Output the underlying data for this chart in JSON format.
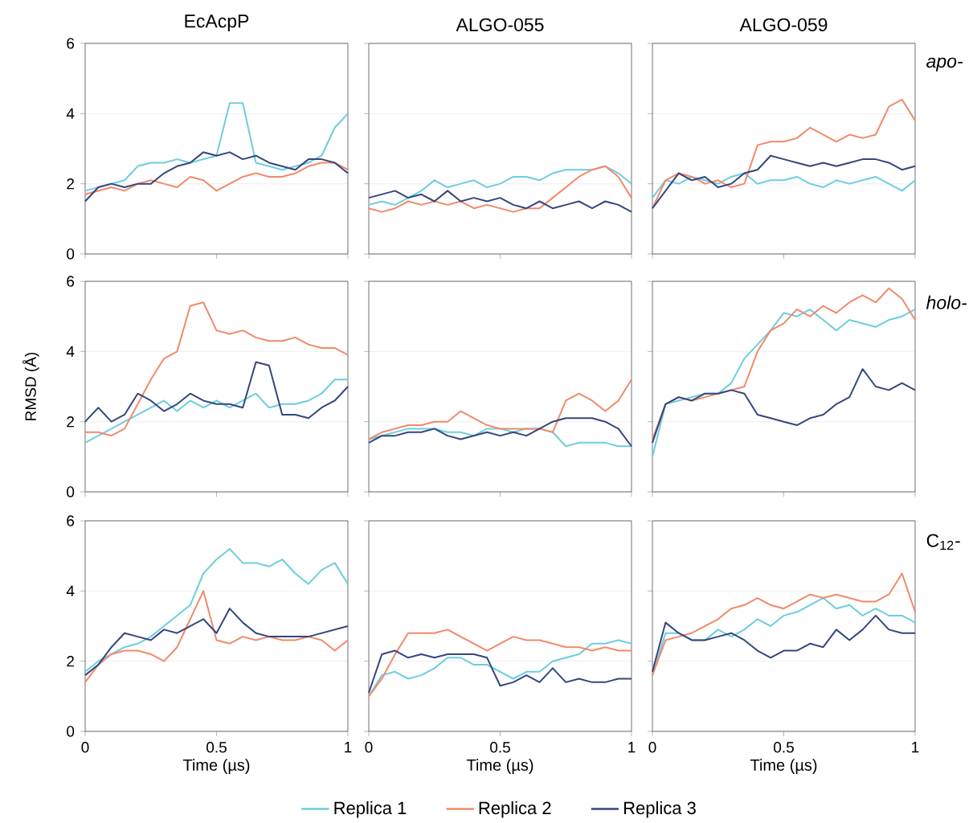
{
  "chart_data": [
    {
      "type": "line",
      "title": "EcAcpP",
      "xlim": [
        0,
        1
      ],
      "ylim": [
        0,
        6
      ],
      "xticks": [
        0,
        0.5,
        1
      ],
      "yticks": [
        0,
        2,
        4,
        6
      ],
      "tick_labels": "y",
      "grid": "y",
      "marker": "none",
      "line_style": "solid",
      "x": [
        0,
        0.05,
        0.1,
        0.15,
        0.2,
        0.25,
        0.3,
        0.35,
        0.4,
        0.45,
        0.5,
        0.55,
        0.6,
        0.65,
        0.7,
        0.75,
        0.8,
        0.85,
        0.9,
        0.95,
        1
      ],
      "series": [
        {
          "color": "#6ecde0",
          "values": [
            1.8,
            1.9,
            2.0,
            2.1,
            2.5,
            2.6,
            2.6,
            2.7,
            2.6,
            2.7,
            2.8,
            4.3,
            4.3,
            2.6,
            2.5,
            2.4,
            2.5,
            2.6,
            2.8,
            3.6,
            4.0
          ]
        },
        {
          "color": "#f08a6a",
          "values": [
            1.7,
            1.8,
            1.9,
            1.8,
            2.0,
            2.1,
            2.0,
            1.9,
            2.2,
            2.1,
            1.8,
            2.0,
            2.2,
            2.3,
            2.2,
            2.2,
            2.3,
            2.5,
            2.6,
            2.6,
            2.4
          ]
        },
        {
          "color": "#34467e",
          "values": [
            1.5,
            1.9,
            2.0,
            1.9,
            2.0,
            2.0,
            2.3,
            2.5,
            2.6,
            2.9,
            2.8,
            2.9,
            2.7,
            2.8,
            2.6,
            2.5,
            2.4,
            2.7,
            2.7,
            2.6,
            2.3
          ]
        }
      ]
    },
    {
      "type": "line",
      "title": "ALGO-055",
      "xlim": [
        0,
        1
      ],
      "ylim": [
        0,
        6
      ],
      "xticks": [
        0,
        0.5,
        1
      ],
      "yticks": [
        0,
        2,
        4,
        6
      ],
      "tick_labels": false,
      "grid": "y",
      "marker": "none",
      "line_style": "solid",
      "x": [
        0,
        0.05,
        0.1,
        0.15,
        0.2,
        0.25,
        0.3,
        0.35,
        0.4,
        0.45,
        0.5,
        0.55,
        0.6,
        0.65,
        0.7,
        0.75,
        0.8,
        0.85,
        0.9,
        0.95,
        1
      ],
      "series": [
        {
          "color": "#6ecde0",
          "values": [
            1.4,
            1.5,
            1.4,
            1.6,
            1.8,
            2.1,
            1.9,
            2.0,
            2.1,
            1.9,
            2.0,
            2.2,
            2.2,
            2.1,
            2.3,
            2.4,
            2.4,
            2.4,
            2.5,
            2.3,
            2.0
          ]
        },
        {
          "color": "#f08a6a",
          "values": [
            1.3,
            1.2,
            1.3,
            1.5,
            1.4,
            1.5,
            1.4,
            1.5,
            1.3,
            1.4,
            1.3,
            1.2,
            1.3,
            1.3,
            1.6,
            1.9,
            2.2,
            2.4,
            2.5,
            2.2,
            1.6
          ]
        },
        {
          "color": "#34467e",
          "values": [
            1.6,
            1.7,
            1.8,
            1.6,
            1.7,
            1.5,
            1.8,
            1.5,
            1.6,
            1.5,
            1.6,
            1.4,
            1.3,
            1.5,
            1.3,
            1.4,
            1.5,
            1.3,
            1.5,
            1.4,
            1.2
          ]
        }
      ]
    },
    {
      "type": "line",
      "title": "ALGO-059",
      "annotations": [
        "*apo-*"
      ],
      "xlim": [
        0,
        1
      ],
      "ylim": [
        0,
        6
      ],
      "xticks": [
        0,
        0.5,
        1
      ],
      "yticks": [
        0,
        2,
        4,
        6
      ],
      "tick_labels": false,
      "grid": "y",
      "marker": "none",
      "line_style": "solid",
      "x": [
        0,
        0.05,
        0.1,
        0.15,
        0.2,
        0.25,
        0.3,
        0.35,
        0.4,
        0.45,
        0.5,
        0.55,
        0.6,
        0.65,
        0.7,
        0.75,
        0.8,
        0.85,
        0.9,
        0.95,
        1
      ],
      "series": [
        {
          "color": "#6ecde0",
          "values": [
            1.6,
            2.1,
            2.0,
            2.2,
            2.1,
            2.0,
            2.2,
            2.3,
            2.0,
            2.1,
            2.1,
            2.2,
            2.0,
            1.9,
            2.1,
            2.0,
            2.1,
            2.2,
            2.0,
            1.8,
            2.1
          ]
        },
        {
          "color": "#f08a6a",
          "values": [
            1.3,
            2.1,
            2.3,
            2.2,
            2.0,
            2.1,
            1.9,
            2.0,
            3.1,
            3.2,
            3.2,
            3.3,
            3.6,
            3.4,
            3.2,
            3.4,
            3.3,
            3.4,
            4.2,
            4.4,
            3.8
          ]
        },
        {
          "color": "#34467e",
          "values": [
            1.3,
            1.8,
            2.3,
            2.1,
            2.2,
            1.9,
            2.0,
            2.3,
            2.4,
            2.8,
            2.7,
            2.6,
            2.5,
            2.6,
            2.5,
            2.6,
            2.7,
            2.7,
            2.6,
            2.4,
            2.5
          ]
        }
      ]
    },
    {
      "type": "line",
      "ylabel": "RMSD (Å)",
      "xlim": [
        0,
        1
      ],
      "ylim": [
        0,
        6
      ],
      "xticks": [
        0,
        0.5,
        1
      ],
      "yticks": [
        0,
        2,
        4,
        6
      ],
      "tick_labels": "y",
      "grid": "y",
      "marker": "none",
      "line_style": "solid",
      "x": [
        0,
        0.05,
        0.1,
        0.15,
        0.2,
        0.25,
        0.3,
        0.35,
        0.4,
        0.45,
        0.5,
        0.55,
        0.6,
        0.65,
        0.7,
        0.75,
        0.8,
        0.85,
        0.9,
        0.95,
        1
      ],
      "series": [
        {
          "color": "#6ecde0",
          "values": [
            1.4,
            1.6,
            1.8,
            2.0,
            2.2,
            2.4,
            2.6,
            2.3,
            2.6,
            2.4,
            2.6,
            2.4,
            2.6,
            2.8,
            2.4,
            2.5,
            2.5,
            2.6,
            2.8,
            3.2,
            3.2
          ]
        },
        {
          "color": "#f08a6a",
          "values": [
            1.7,
            1.7,
            1.6,
            1.8,
            2.5,
            3.2,
            3.8,
            4.0,
            5.3,
            5.4,
            4.6,
            4.5,
            4.6,
            4.4,
            4.3,
            4.3,
            4.4,
            4.2,
            4.1,
            4.1,
            3.9
          ]
        },
        {
          "color": "#34467e",
          "values": [
            2.0,
            2.4,
            2.0,
            2.2,
            2.8,
            2.6,
            2.3,
            2.5,
            2.8,
            2.6,
            2.5,
            2.5,
            2.4,
            3.7,
            3.6,
            2.2,
            2.2,
            2.1,
            2.4,
            2.6,
            3.0
          ]
        }
      ]
    },
    {
      "type": "line",
      "xlim": [
        0,
        1
      ],
      "ylim": [
        0,
        6
      ],
      "xticks": [
        0,
        0.5,
        1
      ],
      "yticks": [
        0,
        2,
        4,
        6
      ],
      "tick_labels": false,
      "grid": "y",
      "marker": "none",
      "line_style": "solid",
      "x": [
        0,
        0.05,
        0.1,
        0.15,
        0.2,
        0.25,
        0.3,
        0.35,
        0.4,
        0.45,
        0.5,
        0.55,
        0.6,
        0.65,
        0.7,
        0.75,
        0.8,
        0.85,
        0.9,
        0.95,
        1
      ],
      "series": [
        {
          "color": "#6ecde0",
          "values": [
            1.5,
            1.6,
            1.7,
            1.8,
            1.8,
            1.8,
            1.7,
            1.7,
            1.6,
            1.8,
            1.8,
            1.7,
            1.8,
            1.8,
            1.7,
            1.3,
            1.4,
            1.4,
            1.4,
            1.3,
            1.3
          ]
        },
        {
          "color": "#f08a6a",
          "values": [
            1.5,
            1.7,
            1.8,
            1.9,
            1.9,
            2.0,
            2.0,
            2.3,
            2.1,
            1.9,
            1.8,
            1.8,
            1.8,
            1.8,
            1.7,
            2.6,
            2.8,
            2.6,
            2.3,
            2.6,
            3.2
          ]
        },
        {
          "color": "#34467e",
          "values": [
            1.4,
            1.6,
            1.6,
            1.7,
            1.7,
            1.8,
            1.6,
            1.5,
            1.6,
            1.7,
            1.6,
            1.7,
            1.6,
            1.8,
            2.0,
            2.1,
            2.1,
            2.1,
            2.0,
            1.8,
            1.3
          ]
        }
      ]
    },
    {
      "type": "line",
      "annotations": [
        "*holo-*"
      ],
      "xlim": [
        0,
        1
      ],
      "ylim": [
        0,
        6
      ],
      "xticks": [
        0,
        0.5,
        1
      ],
      "yticks": [
        0,
        2,
        4,
        6
      ],
      "tick_labels": false,
      "grid": "y",
      "marker": "none",
      "line_style": "solid",
      "x": [
        0,
        0.05,
        0.1,
        0.15,
        0.2,
        0.25,
        0.3,
        0.35,
        0.4,
        0.45,
        0.5,
        0.55,
        0.6,
        0.65,
        0.7,
        0.75,
        0.8,
        0.85,
        0.9,
        0.95,
        1
      ],
      "series": [
        {
          "color": "#6ecde0",
          "values": [
            1.0,
            2.5,
            2.6,
            2.7,
            2.8,
            2.8,
            3.1,
            3.8,
            4.2,
            4.6,
            5.1,
            5.0,
            5.2,
            4.9,
            4.6,
            4.9,
            4.8,
            4.7,
            4.9,
            5.0,
            5.2
          ]
        },
        {
          "color": "#f08a6a",
          "values": [
            1.5,
            2.5,
            2.7,
            2.6,
            2.7,
            2.8,
            2.9,
            3.0,
            4.0,
            4.6,
            4.8,
            5.2,
            5.0,
            5.3,
            5.1,
            5.4,
            5.6,
            5.4,
            5.8,
            5.5,
            4.9
          ]
        },
        {
          "color": "#34467e",
          "values": [
            1.4,
            2.5,
            2.7,
            2.6,
            2.8,
            2.8,
            2.9,
            2.8,
            2.2,
            2.1,
            2.0,
            1.9,
            2.1,
            2.2,
            2.5,
            2.7,
            3.5,
            3.0,
            2.9,
            3.1,
            2.9
          ]
        }
      ]
    },
    {
      "type": "line",
      "xlabel": "Time (µs)",
      "xlim": [
        0,
        1
      ],
      "ylim": [
        0,
        6
      ],
      "xticks": [
        0,
        0.5,
        1
      ],
      "yticks": [
        0,
        2,
        4,
        6
      ],
      "grid": "y",
      "marker": "none",
      "line_style": "solid",
      "x": [
        0,
        0.05,
        0.1,
        0.15,
        0.2,
        0.25,
        0.3,
        0.35,
        0.4,
        0.45,
        0.5,
        0.55,
        0.6,
        0.65,
        0.7,
        0.75,
        0.8,
        0.85,
        0.9,
        0.95,
        1
      ],
      "series": [
        {
          "color": "#6ecde0",
          "values": [
            1.7,
            2.0,
            2.2,
            2.4,
            2.5,
            2.7,
            3.0,
            3.3,
            3.6,
            4.5,
            4.9,
            5.2,
            4.8,
            4.8,
            4.7,
            4.9,
            4.5,
            4.2,
            4.6,
            4.8,
            4.2
          ]
        },
        {
          "color": "#f08a6a",
          "values": [
            1.4,
            1.9,
            2.2,
            2.3,
            2.3,
            2.2,
            2.0,
            2.4,
            3.2,
            4.0,
            2.6,
            2.5,
            2.7,
            2.6,
            2.7,
            2.6,
            2.6,
            2.7,
            2.6,
            2.3,
            2.6
          ]
        },
        {
          "color": "#34467e",
          "values": [
            1.6,
            1.9,
            2.4,
            2.8,
            2.7,
            2.6,
            2.9,
            2.8,
            3.0,
            3.2,
            2.8,
            3.5,
            3.1,
            2.8,
            2.7,
            2.7,
            2.7,
            2.7,
            2.8,
            2.9,
            3.0
          ]
        }
      ]
    },
    {
      "type": "line",
      "xlabel": "Time (µs)",
      "xlim": [
        0,
        1
      ],
      "ylim": [
        0,
        6
      ],
      "xticks": [
        0,
        0.5,
        1
      ],
      "yticks": [
        0,
        2,
        4,
        6
      ],
      "tick_labels": "x",
      "grid": "y",
      "marker": "none",
      "line_style": "solid",
      "legend": "bottom",
      "x": [
        0,
        0.05,
        0.1,
        0.15,
        0.2,
        0.25,
        0.3,
        0.35,
        0.4,
        0.45,
        0.5,
        0.55,
        0.6,
        0.65,
        0.7,
        0.75,
        0.8,
        0.85,
        0.9,
        0.95,
        1
      ],
      "series": [
        {
          "name": "Replica 1",
          "color": "#6ecde0",
          "values": [
            1.0,
            1.6,
            1.7,
            1.5,
            1.6,
            1.8,
            2.1,
            2.1,
            1.9,
            1.9,
            1.7,
            1.5,
            1.7,
            1.7,
            2.0,
            2.1,
            2.2,
            2.5,
            2.5,
            2.6,
            2.5
          ]
        },
        {
          "name": "Replica 2",
          "color": "#f08a6a",
          "values": [
            1.0,
            1.5,
            2.2,
            2.8,
            2.8,
            2.8,
            2.9,
            2.7,
            2.5,
            2.3,
            2.5,
            2.7,
            2.6,
            2.6,
            2.5,
            2.4,
            2.4,
            2.3,
            2.4,
            2.3,
            2.3
          ]
        },
        {
          "name": "Replica 3",
          "color": "#34467e",
          "values": [
            1.1,
            2.2,
            2.3,
            2.1,
            2.2,
            2.1,
            2.2,
            2.2,
            2.2,
            2.1,
            1.3,
            1.4,
            1.6,
            1.4,
            1.8,
            1.4,
            1.5,
            1.4,
            1.4,
            1.5,
            1.5
          ]
        }
      ]
    },
    {
      "type": "line",
      "xlabel": "Time (µs)",
      "annotations": [
        "C$_{12}$-"
      ],
      "xlim": [
        0,
        1
      ],
      "ylim": [
        0,
        6
      ],
      "xticks": [
        0,
        0.5,
        1
      ],
      "yticks": [
        0,
        2,
        4,
        6
      ],
      "tick_labels": "x",
      "grid": "y",
      "marker": "none",
      "line_style": "solid",
      "x": [
        0,
        0.05,
        0.1,
        0.15,
        0.2,
        0.25,
        0.3,
        0.35,
        0.4,
        0.45,
        0.5,
        0.55,
        0.6,
        0.65,
        0.7,
        0.75,
        0.8,
        0.85,
        0.9,
        0.95,
        1
      ],
      "series": [
        {
          "color": "#6ecde0",
          "values": [
            1.6,
            2.8,
            2.8,
            2.6,
            2.6,
            2.9,
            2.7,
            2.9,
            3.2,
            3.0,
            3.3,
            3.4,
            3.6,
            3.8,
            3.5,
            3.6,
            3.3,
            3.5,
            3.3,
            3.3,
            3.1
          ]
        },
        {
          "color": "#f08a6a",
          "values": [
            1.6,
            2.6,
            2.7,
            2.8,
            3.0,
            3.2,
            3.5,
            3.6,
            3.8,
            3.6,
            3.5,
            3.7,
            3.9,
            3.8,
            3.9,
            3.8,
            3.7,
            3.7,
            3.9,
            4.5,
            3.4
          ]
        },
        {
          "color": "#34467e",
          "values": [
            1.7,
            3.1,
            2.8,
            2.6,
            2.6,
            2.7,
            2.8,
            2.6,
            2.3,
            2.1,
            2.3,
            2.3,
            2.5,
            2.4,
            2.9,
            2.6,
            2.9,
            3.3,
            2.9,
            2.8,
            2.8
          ]
        }
      ]
    }
  ]
}
